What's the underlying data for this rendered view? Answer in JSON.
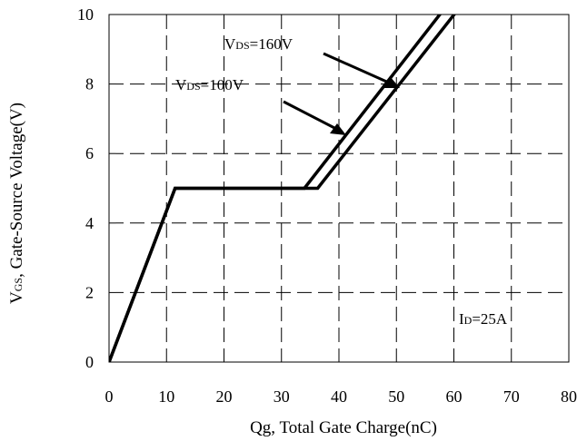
{
  "chart_data": {
    "type": "line",
    "xlabel": "Qg, Total Gate Charge(nC)",
    "ylabel": {
      "main": "V",
      "sub": "GS",
      "rest": ", Gate-Source Voltage(V)"
    },
    "xlim": [
      0,
      80
    ],
    "ylim": [
      0,
      10
    ],
    "x_ticks": [
      "0",
      "10",
      "20",
      "30",
      "40",
      "50",
      "60",
      "70",
      "80"
    ],
    "y_ticks": [
      "0",
      "2",
      "4",
      "6",
      "8",
      "10"
    ],
    "grid": "dashed",
    "series": [
      {
        "name": "VDS=100V",
        "x": [
          0,
          11.5,
          34,
          58.5
        ],
        "y": [
          0,
          5,
          5,
          10.2
        ]
      },
      {
        "name": "VDS=160V",
        "x": [
          0,
          11.5,
          36.3,
          61
        ],
        "y": [
          0,
          5,
          5,
          10.2
        ]
      }
    ],
    "annotations": [
      {
        "main": "V",
        "sub": "DS",
        "rest": "=160V"
      },
      {
        "main": "V",
        "sub": "DS",
        "rest": "=100V"
      },
      {
        "main": "I",
        "sub": "D",
        "rest": "=25A"
      }
    ]
  }
}
